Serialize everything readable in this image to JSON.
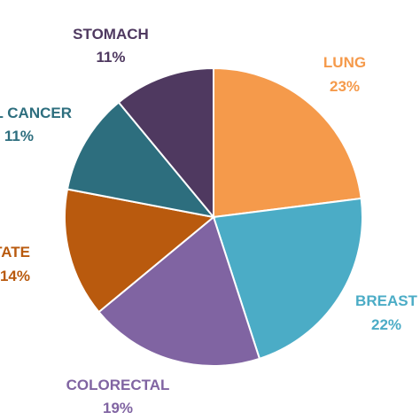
{
  "chart_data": {
    "type": "pie",
    "slices": [
      {
        "name": "LUNG",
        "value": 23,
        "display": "23%",
        "color": "#F59A4B"
      },
      {
        "name": "BREAST",
        "value": 22,
        "display": "22%",
        "color": "#4BACC6"
      },
      {
        "name": "COLORECTAL",
        "value": 19,
        "display": "19%",
        "color": "#8064A2"
      },
      {
        "name": "PROSTATE",
        "value": 14,
        "display": "14%",
        "color": "#B95A0E"
      },
      {
        "name": "CERVICAL CANCER",
        "value": 11,
        "display": "11%",
        "color": "#2D6E7E"
      },
      {
        "name": "STOMACH",
        "value": 11,
        "display": "11%",
        "color": "#4F3960"
      }
    ],
    "label_colors": [
      "#F59A4B",
      "#4BACC6",
      "#8064A2",
      "#B95A0E",
      "#2D6E7E",
      "#4F3960"
    ],
    "start_angle": "12 o'clock",
    "direction": "clockwise",
    "legend": "none",
    "data_labels": "outside, name above percent"
  }
}
